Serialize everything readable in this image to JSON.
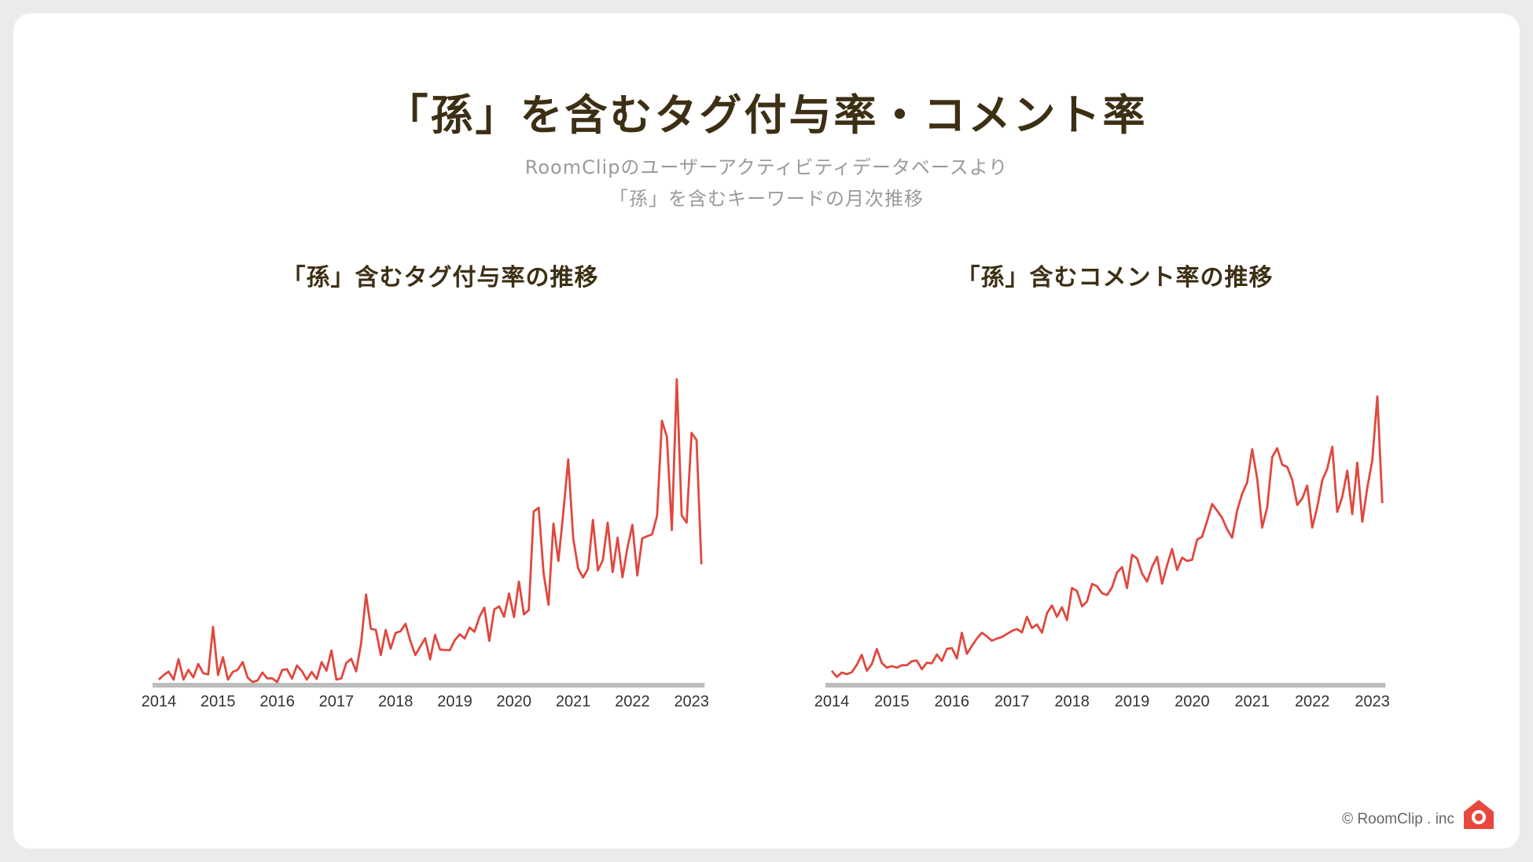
{
  "header": {
    "title": "「孫」を含むタグ付与率・コメント率",
    "subtitle_line1": "RoomClipのユーザーアクティビティデータベースより",
    "subtitle_line2": "「孫」を含むキーワードの月次推移"
  },
  "footer": {
    "copyright": "© RoomClip . inc"
  },
  "colors": {
    "line": "#e0483e",
    "axis": "#bdbdbd",
    "title": "#3d2f14",
    "logo": "#e8473e"
  },
  "icons": {
    "logo": "house-camera-icon"
  },
  "chart_data": [
    {
      "type": "line",
      "title": "「孫」含むタグ付与率の推移",
      "xlabel": "",
      "ylabel": "",
      "x_ticks": [
        "2014",
        "2015",
        "2016",
        "2017",
        "2018",
        "2019",
        "2020",
        "2021",
        "2022",
        "2023"
      ],
      "x_start": "2014-01",
      "x_end": "2023-07",
      "ylim": [
        0,
        100
      ],
      "y_axis_visible": false,
      "grid": false,
      "series": [
        {
          "values": [
            0.8,
            2.3,
            3.4,
            0.8,
            7.5,
            0.8,
            4.0,
            1.5,
            5.9,
            2.9,
            2.5,
            18.0,
            2.3,
            8.1,
            0.8,
            3.3,
            4.0,
            6.5,
            1.5,
            0.0,
            0.5,
            3.1,
            1.2,
            1.2,
            0.0,
            3.9,
            4.2,
            1.1,
            5.4,
            3.6,
            0.8,
            3.3,
            1.0,
            6.5,
            3.7,
            10.3,
            0.8,
            1.2,
            6.2,
            7.6,
            3.5,
            12.6,
            28.6,
            17.4,
            17.0,
            8.8,
            17.0,
            10.9,
            16.0,
            16.6,
            19.0,
            13.4,
            8.8,
            11.6,
            14.3,
            7.4,
            15.4,
            10.6,
            10.5,
            10.4,
            13.7,
            15.6,
            14.2,
            17.8,
            16.4,
            21.3,
            24.3,
            13.4,
            23.7,
            24.7,
            21.3,
            28.9,
            21.2,
            32.8,
            22.1,
            23.5,
            55.7,
            56.9,
            35.4,
            25.2,
            51.7,
            39.5,
            55.2,
            72.7,
            47.0,
            37.1,
            34.1,
            36.9,
            52.9,
            36.4,
            39.8,
            52.0,
            35.9,
            47.1,
            34.2,
            43.8,
            51.3,
            34.8,
            46.9,
            47.6,
            48.2,
            54.3,
            85.3,
            80.0,
            49.6,
            98.8,
            54.4,
            52.0,
            81.3,
            79.0,
            38.4
          ],
          "month_offset": 0
        }
      ]
    },
    {
      "type": "line",
      "title": "「孫」含むコメント率の推移",
      "xlabel": "",
      "ylabel": "",
      "x_ticks": [
        "2014",
        "2015",
        "2016",
        "2017",
        "2018",
        "2019",
        "2020",
        "2021",
        "2022",
        "2023"
      ],
      "x_start": "2014-01",
      "x_end": "2023-07",
      "ylim": [
        0,
        100
      ],
      "y_axis_visible": false,
      "grid": false,
      "series": [
        {
          "values": [
            3.7,
            1.7,
            3.1,
            2.6,
            3.2,
            5.6,
            8.9,
            3.7,
            5.8,
            10.8,
            6.2,
            4.7,
            5.2,
            4.7,
            5.5,
            5.5,
            6.8,
            7.0,
            4.2,
            6.3,
            6.1,
            9.0,
            6.9,
            10.8,
            11.1,
            7.7,
            16.1,
            9.2,
            11.8,
            14.2,
            16.1,
            14.9,
            13.5,
            14.2,
            14.7,
            15.7,
            16.7,
            17.3,
            16.2,
            21.3,
            17.6,
            18.8,
            16.1,
            22.5,
            25.0,
            21.3,
            24.4,
            20.2,
            30.7,
            29.7,
            24.7,
            26.3,
            32.0,
            31.3,
            29.0,
            28.4,
            30.9,
            35.8,
            37.5,
            30.7,
            41.5,
            40.3,
            35.4,
            32.8,
            37.6,
            40.9,
            32.1,
            38.2,
            43.4,
            36.6,
            40.6,
            39.5,
            39.9,
            46.5,
            47.4,
            52.6,
            58.1,
            55.9,
            53.6,
            49.8,
            47.1,
            56.0,
            61.5,
            65.1,
            76.0,
            66.3,
            50.4,
            57.0,
            73.4,
            76.3,
            70.9,
            70.2,
            66.0,
            57.8,
            59.9,
            64.1,
            50.4,
            57.1,
            65.8,
            69.6,
            76.8,
            55.5,
            60.4,
            69.0,
            54.8,
            71.6,
            52.3,
            63.3,
            72.4,
            93.2,
            58.4
          ],
          "month_offset": 0
        }
      ]
    }
  ]
}
